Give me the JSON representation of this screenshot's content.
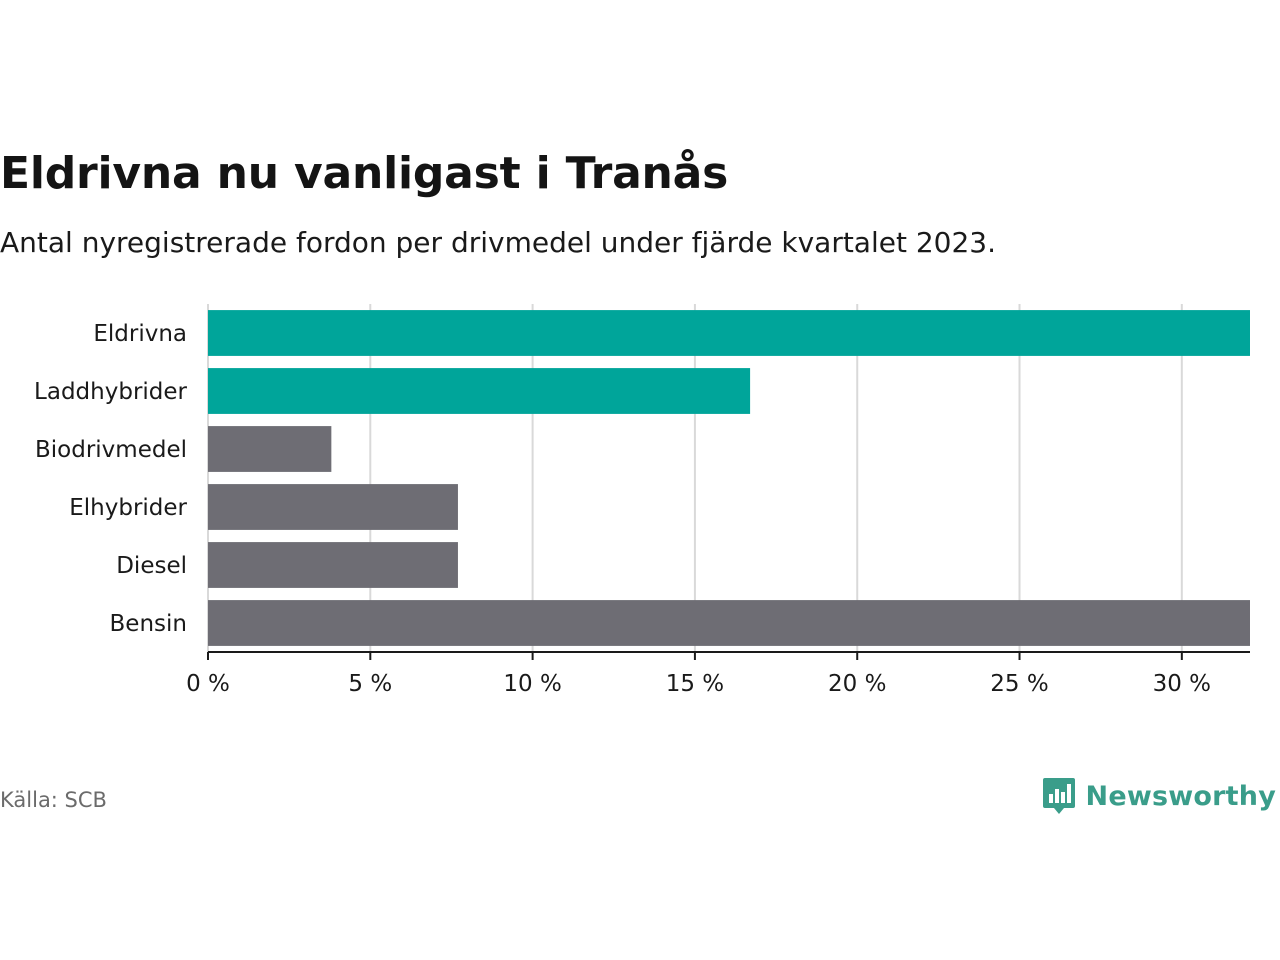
{
  "header": {
    "title": "Eldrivna nu vanligast i Tranås",
    "subtitle": "Antal nyregistrerade fordon per drivmedel under fjärde kvartalet 2023."
  },
  "footer": {
    "source": "Källa: SCB",
    "brand": "Newsworthy",
    "brand_icon": "newsworthy-logo-icon"
  },
  "colors": {
    "highlight": "#00a59a",
    "default": "#6e6d74",
    "grid": "#d9d9d9",
    "axis": "#1a1a1a",
    "brand": "#3a9d8a"
  },
  "chart_data": {
    "type": "bar",
    "orientation": "horizontal",
    "title": "Eldrivna nu vanligast i Tranås",
    "subtitle": "Antal nyregistrerade fordon per drivmedel under fjärde kvartalet 2023.",
    "xlabel": "",
    "ylabel": "",
    "unit": "%",
    "xlim": [
      0,
      32.1
    ],
    "xticks": [
      0,
      5,
      10,
      15,
      20,
      25,
      30
    ],
    "xtick_labels": [
      "0 %",
      "5 %",
      "10 %",
      "15 %",
      "20 %",
      "25 %",
      "30 %"
    ],
    "grid": true,
    "categories": [
      "Eldrivna",
      "Laddhybrider",
      "Biodrivmedel",
      "Elhybrider",
      "Diesel",
      "Bensin"
    ],
    "values": [
      32.1,
      16.7,
      3.8,
      7.7,
      7.7,
      32.1
    ],
    "highlighted": [
      true,
      true,
      false,
      false,
      false,
      false
    ]
  }
}
